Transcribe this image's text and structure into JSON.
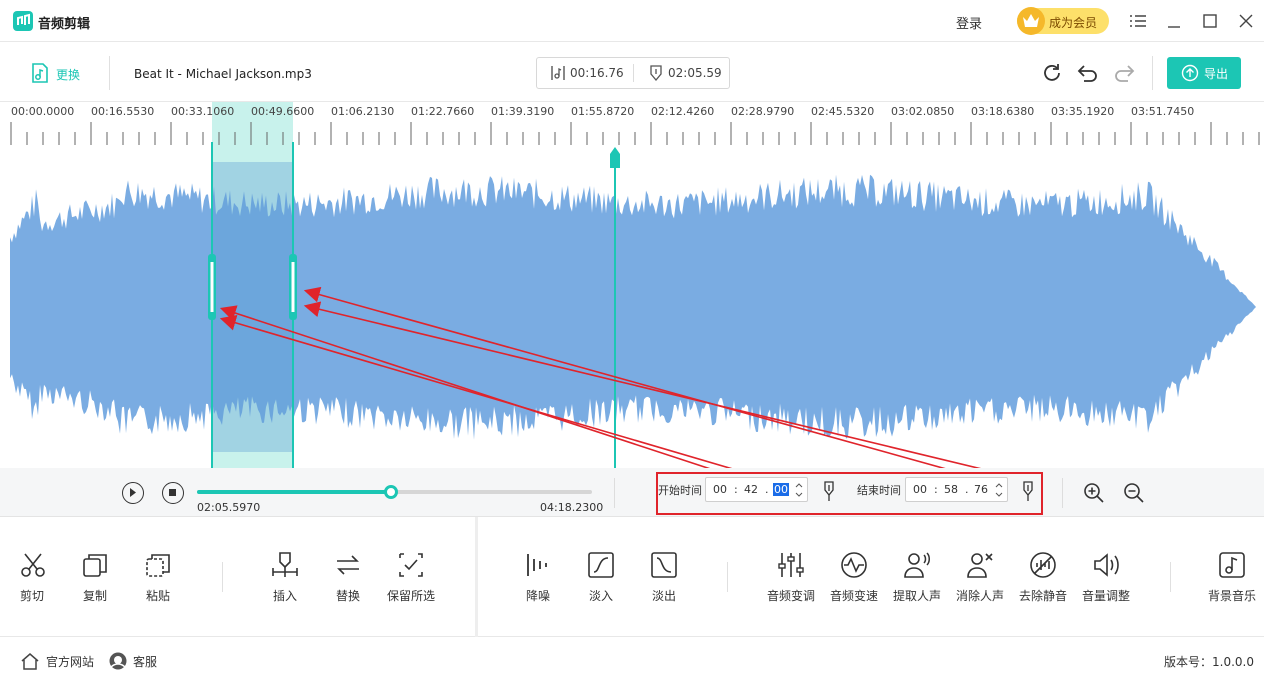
{
  "app": {
    "title": "音频剪辑"
  },
  "titlebar": {
    "login": "登录",
    "vip": "成为会员"
  },
  "toolbar": {
    "change_label": "更换",
    "file_name": "Beat It - Michael Jackson.mp3",
    "selection_duration": "00:16.76",
    "total_duration": "02:05.59",
    "export_label": "导出"
  },
  "ruler": {
    "labels": [
      "00:00.0000",
      "00:16.5530",
      "00:33.1060",
      "00:49.6600",
      "01:06.2130",
      "01:22.7660",
      "01:39.3190",
      "01:55.8720",
      "02:12.4260",
      "02:28.9790",
      "02:45.5320",
      "03:02.0850",
      "03:18.6380",
      "03:35.1920",
      "03:51.7450"
    ]
  },
  "waveform": {
    "color": "#73a8e0",
    "selection_color": "#c8f2ec",
    "marker_color": "#1cc6b4"
  },
  "playback": {
    "current_time": "02:05.5970",
    "total_time": "04:18.2300",
    "progress": 0.49,
    "start_label": "开始时间",
    "start": {
      "h": "00",
      "m": "42",
      "s": "00"
    },
    "end_label": "结束时间",
    "end": {
      "h": "00",
      "m": "58",
      "s": "76"
    }
  },
  "tools": {
    "cut": "剪切",
    "copy": "复制",
    "paste": "粘贴",
    "insert": "插入",
    "replace": "替换",
    "keep": "保留所选",
    "denoise": "降噪",
    "fadein": "淡入",
    "fadeout": "淡出",
    "pitch": "音频变调",
    "speed": "音频变速",
    "extract_vocal": "提取人声",
    "remove_vocal": "消除人声",
    "remove_silence": "去除静音",
    "volume": "音量调整",
    "bgm": "背景音乐"
  },
  "status": {
    "website": "官方网站",
    "support": "客服",
    "version": "版本号：1.0.0.0"
  },
  "colors": {
    "accent": "#1cc6b4",
    "annotation": "#e0242b"
  }
}
